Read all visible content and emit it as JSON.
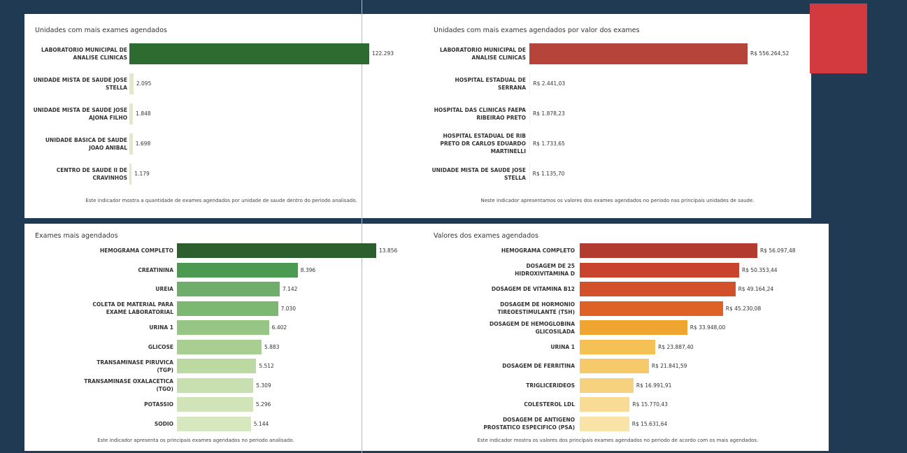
{
  "chart_data": [
    {
      "type": "bar",
      "title": "Unidades com mais exames agendados",
      "categories": [
        "LABORATORIO MUNICIPAL DE ANALISE CLINICAS",
        "UNIDADE MISTA DE SAUDE JOSE STELLA",
        "UNIDADE MISTA DE SAUDE JOSE AJONA FILHO",
        "UNIDADE BASICA DE SAUDE JOAO ANIBAL",
        "CENTRO DE SAUDE II DE CRAVINHOS"
      ],
      "values": [
        122293,
        2095,
        1848,
        1698,
        1179
      ],
      "value_labels": [
        "122.293",
        "2.095",
        "1.848",
        "1.698",
        "1.179"
      ],
      "colors": [
        "#2e6b30",
        "#e2e9c9",
        "#e2e9c9",
        "#e2e9c9",
        "#e2e9c9"
      ],
      "note": "Este indicador mostra a quantidade de exames agendados por unidade de saude dentro do periodo analisado."
    },
    {
      "type": "bar",
      "title": "Unidades com mais exames agendados por valor dos exames",
      "categories": [
        "LABORATORIO MUNICIPAL DE ANALISE CLINICAS",
        "HOSPITAL ESTADUAL DE SERRANA",
        "HOSPITAL DAS CLINICAS FAEPA RIBEIRAO PRETO",
        "HOSPITAL ESTADUAL DE RIB PRETO DR CARLOS EDUARDO MARTINELLI",
        "UNIDADE MISTA DE SAUDE JOSE STELLA"
      ],
      "values": [
        556264.52,
        2441.03,
        1878.23,
        1733.65,
        1135.7
      ],
      "value_labels": [
        "R$ 556.264,52",
        "R$ 2.441,03",
        "R$ 1.878,23",
        "R$ 1.733,65",
        "R$ 1.135,70"
      ],
      "colors": [
        "#b7443a",
        "#f4efd6",
        "#f4efd6",
        "#f4efd6",
        "#f4efd6"
      ],
      "note": "Neste indicador apresentamos os valores dos exames agendados no periodo nas principais unidades de saude."
    },
    {
      "type": "bar",
      "title": "Exames mais agendados",
      "categories": [
        "HEMOGRAMA COMPLETO",
        "CREATININA",
        "UREIA",
        "COLETA DE MATERIAL PARA EXAME LABORATORIAL",
        "URINA 1",
        "GLICOSE",
        "TRANSAMINASE PIRUVICA (TGP)",
        "TRANSAMINASE OXALACETICA (TGO)",
        "POTASSIO",
        "SODIO"
      ],
      "values": [
        13856,
        8396,
        7142,
        7030,
        6402,
        5883,
        5512,
        5309,
        5296,
        5144
      ],
      "value_labels": [
        "13.856",
        "8.396",
        "7.142",
        "7.030",
        "6.402",
        "5.883",
        "5.512",
        "5.309",
        "5.296",
        "5.144"
      ],
      "colors": [
        "#2d5e2d",
        "#4c9a52",
        "#6fae6a",
        "#7db872",
        "#97c585",
        "#a8cf91",
        "#bcd9a2",
        "#c8dfaf",
        "#d0e4b7",
        "#d7e8be"
      ],
      "note": "Este indicador apresenta os principais exames agendados no periodo analisado."
    },
    {
      "type": "bar",
      "title": "Valores dos exames agendados",
      "categories": [
        "HEMOGRAMA COMPLETO",
        "DOSAGEM DE 25 HIDROXIVITAMINA D",
        "DOSAGEM DE VITAMINA B12",
        "DOSAGEM DE HORMONIO TIREOESTIMULANTE (TSH)",
        "DOSAGEM DE HEMOGLOBINA GLICOSILADA",
        "URINA 1",
        "DOSAGEM DE FERRITINA",
        "TRIGLICERIDEOS",
        "COLESTEROL LDL",
        "DOSAGEM DE ANTIGENO PROSTATICO ESPECIFICO (PSA)"
      ],
      "values": [
        56097.48,
        50353.44,
        49164.24,
        45230.08,
        33948.0,
        23887.4,
        21841.59,
        16991.91,
        15770.43,
        15631.64
      ],
      "value_labels": [
        "R$ 56.097,48",
        "R$ 50.353,44",
        "R$ 49.164,24",
        "R$ 45.230,08",
        "R$ 33.948,00",
        "R$ 23.887,40",
        "R$ 21.841,59",
        "R$ 16.991,91",
        "R$ 15.770,43",
        "R$ 15.631,64"
      ],
      "colors": [
        "#b33a2e",
        "#c9442c",
        "#d2512a",
        "#de6126",
        "#f0a530",
        "#f5c154",
        "#f6c96a",
        "#f7d27e",
        "#f8dc95",
        "#f9e3a6"
      ],
      "note": "Este indicador mostra os valores dos principais exames agendados no periodo de acordo com os mais agendados."
    }
  ]
}
